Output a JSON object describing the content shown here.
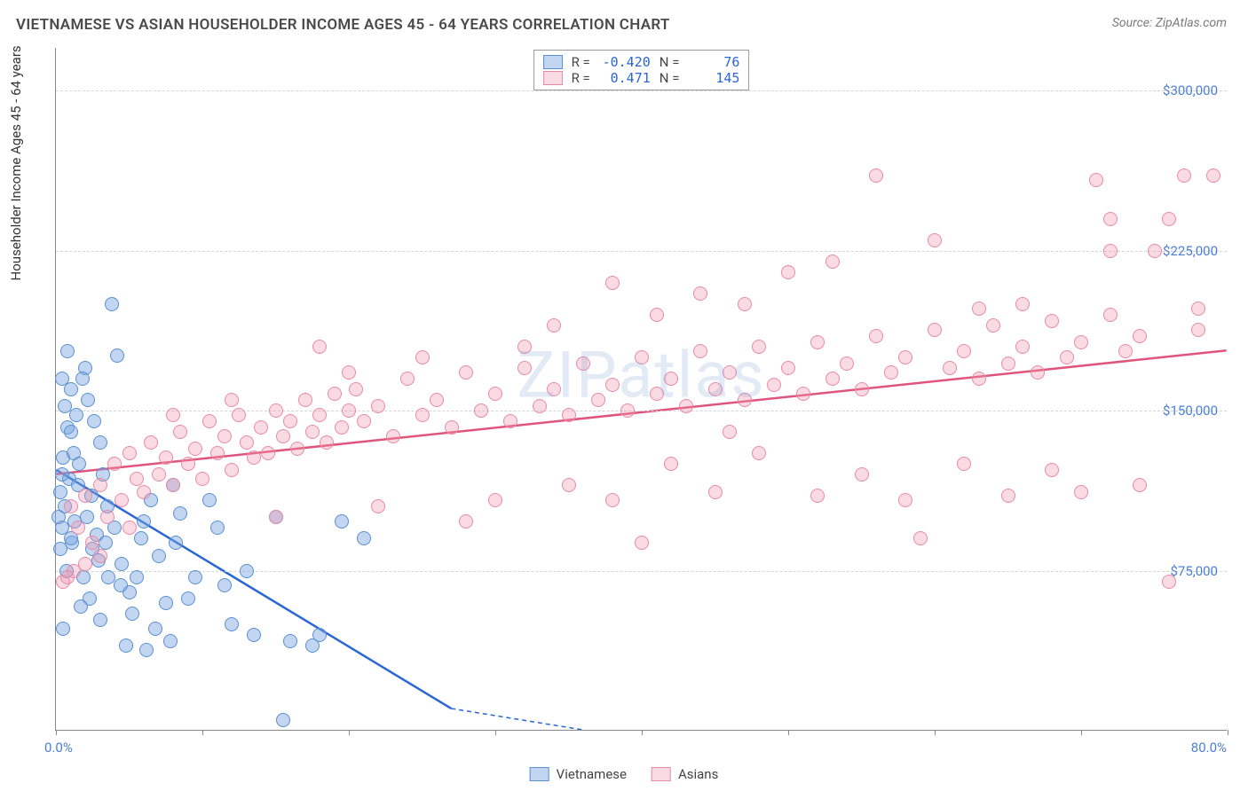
{
  "title": "VIETNAMESE VS ASIAN HOUSEHOLDER INCOME AGES 45 - 64 YEARS CORRELATION CHART",
  "source_label": "Source: ZipAtlas.com",
  "watermark": "ZIPatlas",
  "y_axis_title": "Householder Income Ages 45 - 64 years",
  "x_start_label": "0.0%",
  "x_end_label": "80.0%",
  "chart": {
    "type": "scatter",
    "xlim": [
      0,
      80
    ],
    "ylim": [
      0,
      320000
    ],
    "x_ticks": [
      0,
      10,
      20,
      30,
      40,
      50,
      60,
      70,
      80
    ],
    "y_ticks": [
      75000,
      150000,
      225000,
      300000
    ],
    "y_tick_labels": [
      "$75,000",
      "$150,000",
      "$225,000",
      "$300,000"
    ],
    "grid_color": "#d5d5d5",
    "axis_color": "#888888",
    "tick_label_color": "#4a7fd8",
    "point_radius": 8,
    "background_color": "#ffffff",
    "series": [
      {
        "name": "Vietnamese",
        "color_fill": "rgba(120,165,225,0.45)",
        "color_stroke": "#5a8fd0",
        "line_color": "#2a66d4",
        "line_width": 2.5,
        "regression": {
          "x1": 0,
          "y1": 122000,
          "x2": 27,
          "y2": 10000,
          "dash_x2": 36,
          "dash_y2": 0
        },
        "stats": {
          "R": "-0.420",
          "N": "76"
        },
        "points": [
          [
            0.3,
            112000
          ],
          [
            0.5,
            128000
          ],
          [
            0.4,
            95000
          ],
          [
            0.8,
            142000
          ],
          [
            1.0,
            160000
          ],
          [
            1.2,
            130000
          ],
          [
            0.6,
            105000
          ],
          [
            0.9,
            118000
          ],
          [
            1.4,
            148000
          ],
          [
            1.1,
            88000
          ],
          [
            1.6,
            125000
          ],
          [
            2.0,
            170000
          ],
          [
            2.2,
            155000
          ],
          [
            2.4,
            110000
          ],
          [
            2.8,
            92000
          ],
          [
            3.0,
            135000
          ],
          [
            1.8,
            165000
          ],
          [
            0.7,
            75000
          ],
          [
            1.3,
            98000
          ],
          [
            2.5,
            85000
          ],
          [
            3.2,
            120000
          ],
          [
            3.5,
            105000
          ],
          [
            4.0,
            95000
          ],
          [
            4.5,
            78000
          ],
          [
            5.0,
            65000
          ],
          [
            5.5,
            72000
          ],
          [
            6.0,
            98000
          ],
          [
            6.5,
            108000
          ],
          [
            7.0,
            82000
          ],
          [
            7.5,
            60000
          ],
          [
            8.0,
            115000
          ],
          [
            8.5,
            102000
          ],
          [
            3.8,
            200000
          ],
          [
            4.2,
            176000
          ],
          [
            2.6,
            145000
          ],
          [
            1.9,
            72000
          ],
          [
            0.4,
            165000
          ],
          [
            0.6,
            152000
          ],
          [
            0.8,
            178000
          ],
          [
            1.0,
            140000
          ],
          [
            1.5,
            115000
          ],
          [
            2.1,
            100000
          ],
          [
            3.4,
            88000
          ],
          [
            5.2,
            55000
          ],
          [
            6.8,
            48000
          ],
          [
            9.0,
            62000
          ],
          [
            10.5,
            108000
          ],
          [
            11.0,
            95000
          ],
          [
            12.0,
            50000
          ],
          [
            13.5,
            45000
          ],
          [
            15.0,
            100000
          ],
          [
            16.0,
            42000
          ],
          [
            17.5,
            40000
          ],
          [
            18.0,
            45000
          ],
          [
            19.5,
            98000
          ],
          [
            21.0,
            90000
          ],
          [
            15.5,
            5000
          ],
          [
            3.0,
            52000
          ],
          [
            4.8,
            40000
          ],
          [
            6.2,
            38000
          ],
          [
            7.8,
            42000
          ],
          [
            2.3,
            62000
          ],
          [
            1.7,
            58000
          ],
          [
            0.5,
            48000
          ],
          [
            9.5,
            72000
          ],
          [
            11.5,
            68000
          ],
          [
            13.0,
            75000
          ],
          [
            8.2,
            88000
          ],
          [
            5.8,
            90000
          ],
          [
            4.4,
            68000
          ],
          [
            3.6,
            72000
          ],
          [
            2.9,
            80000
          ],
          [
            1.0,
            90000
          ],
          [
            0.3,
            85000
          ],
          [
            0.2,
            100000
          ],
          [
            0.4,
            120000
          ]
        ]
      },
      {
        "name": "Asians",
        "color_fill": "rgba(240,150,175,0.35)",
        "color_stroke": "#e88aa5",
        "line_color": "#e0547d",
        "line_width": 2.5,
        "regression": {
          "x1": 0,
          "y1": 120000,
          "x2": 80,
          "y2": 178000
        },
        "stats": {
          "R": "0.471",
          "N": "145"
        },
        "points": [
          [
            1,
            105000
          ],
          [
            1.5,
            95000
          ],
          [
            2,
            110000
          ],
          [
            2.5,
            88000
          ],
          [
            3,
            115000
          ],
          [
            3.5,
            100000
          ],
          [
            4,
            125000
          ],
          [
            4.5,
            108000
          ],
          [
            5,
            130000
          ],
          [
            5.5,
            118000
          ],
          [
            6,
            112000
          ],
          [
            6.5,
            135000
          ],
          [
            7,
            120000
          ],
          [
            7.5,
            128000
          ],
          [
            8,
            115000
          ],
          [
            8.5,
            140000
          ],
          [
            9,
            125000
          ],
          [
            9.5,
            132000
          ],
          [
            10,
            118000
          ],
          [
            10.5,
            145000
          ],
          [
            11,
            130000
          ],
          [
            11.5,
            138000
          ],
          [
            12,
            122000
          ],
          [
            12.5,
            148000
          ],
          [
            13,
            135000
          ],
          [
            13.5,
            128000
          ],
          [
            14,
            142000
          ],
          [
            14.5,
            130000
          ],
          [
            15,
            150000
          ],
          [
            15.5,
            138000
          ],
          [
            16,
            145000
          ],
          [
            16.5,
            132000
          ],
          [
            17,
            155000
          ],
          [
            17.5,
            140000
          ],
          [
            18,
            148000
          ],
          [
            18.5,
            135000
          ],
          [
            19,
            158000
          ],
          [
            19.5,
            142000
          ],
          [
            20,
            150000
          ],
          [
            20.5,
            160000
          ],
          [
            21,
            145000
          ],
          [
            22,
            152000
          ],
          [
            23,
            138000
          ],
          [
            24,
            165000
          ],
          [
            25,
            148000
          ],
          [
            26,
            155000
          ],
          [
            27,
            142000
          ],
          [
            28,
            168000
          ],
          [
            29,
            150000
          ],
          [
            30,
            158000
          ],
          [
            31,
            145000
          ],
          [
            32,
            170000
          ],
          [
            33,
            152000
          ],
          [
            34,
            160000
          ],
          [
            35,
            148000
          ],
          [
            36,
            172000
          ],
          [
            37,
            155000
          ],
          [
            38,
            162000
          ],
          [
            39,
            150000
          ],
          [
            40,
            175000
          ],
          [
            41,
            158000
          ],
          [
            42,
            165000
          ],
          [
            43,
            152000
          ],
          [
            44,
            178000
          ],
          [
            45,
            160000
          ],
          [
            46,
            168000
          ],
          [
            47,
            155000
          ],
          [
            48,
            180000
          ],
          [
            49,
            162000
          ],
          [
            50,
            170000
          ],
          [
            51,
            158000
          ],
          [
            52,
            182000
          ],
          [
            53,
            165000
          ],
          [
            54,
            172000
          ],
          [
            55,
            160000
          ],
          [
            56,
            185000
          ],
          [
            57,
            168000
          ],
          [
            58,
            175000
          ],
          [
            59,
            90000
          ],
          [
            60,
            188000
          ],
          [
            61,
            170000
          ],
          [
            62,
            178000
          ],
          [
            63,
            165000
          ],
          [
            64,
            190000
          ],
          [
            65,
            172000
          ],
          [
            66,
            180000
          ],
          [
            67,
            168000
          ],
          [
            68,
            192000
          ],
          [
            69,
            175000
          ],
          [
            70,
            182000
          ],
          [
            71,
            258000
          ],
          [
            72,
            195000
          ],
          [
            73,
            178000
          ],
          [
            74,
            185000
          ],
          [
            75,
            225000
          ],
          [
            76,
            70000
          ],
          [
            77,
            260000
          ],
          [
            78,
            188000
          ],
          [
            79,
            260000
          ],
          [
            50,
            215000
          ],
          [
            38,
            210000
          ],
          [
            44,
            205000
          ],
          [
            56,
            260000
          ],
          [
            30,
            108000
          ],
          [
            35,
            115000
          ],
          [
            42,
            125000
          ],
          [
            48,
            130000
          ],
          [
            55,
            120000
          ],
          [
            62,
            125000
          ],
          [
            68,
            122000
          ],
          [
            15,
            100000
          ],
          [
            22,
            105000
          ],
          [
            28,
            98000
          ],
          [
            34,
            190000
          ],
          [
            41,
            195000
          ],
          [
            47,
            200000
          ],
          [
            53,
            220000
          ],
          [
            60,
            230000
          ],
          [
            66,
            200000
          ],
          [
            72,
            240000
          ],
          [
            25,
            175000
          ],
          [
            32,
            180000
          ],
          [
            38,
            108000
          ],
          [
            45,
            112000
          ],
          [
            52,
            110000
          ],
          [
            58,
            108000
          ],
          [
            65,
            110000
          ],
          [
            70,
            112000
          ],
          [
            74,
            115000
          ],
          [
            76,
            240000
          ],
          [
            63,
            198000
          ],
          [
            20,
            168000
          ],
          [
            12,
            155000
          ],
          [
            8,
            148000
          ],
          [
            5,
            95000
          ],
          [
            3,
            82000
          ],
          [
            2,
            78000
          ],
          [
            1.2,
            75000
          ],
          [
            0.8,
            72000
          ],
          [
            0.5,
            70000
          ],
          [
            18,
            180000
          ],
          [
            40,
            88000
          ],
          [
            46,
            140000
          ],
          [
            72,
            225000
          ],
          [
            78,
            198000
          ]
        ]
      }
    ]
  },
  "bottom_legend": [
    {
      "label": "Vietnamese",
      "swatch": "blue"
    },
    {
      "label": "Asians",
      "swatch": "pink"
    }
  ]
}
